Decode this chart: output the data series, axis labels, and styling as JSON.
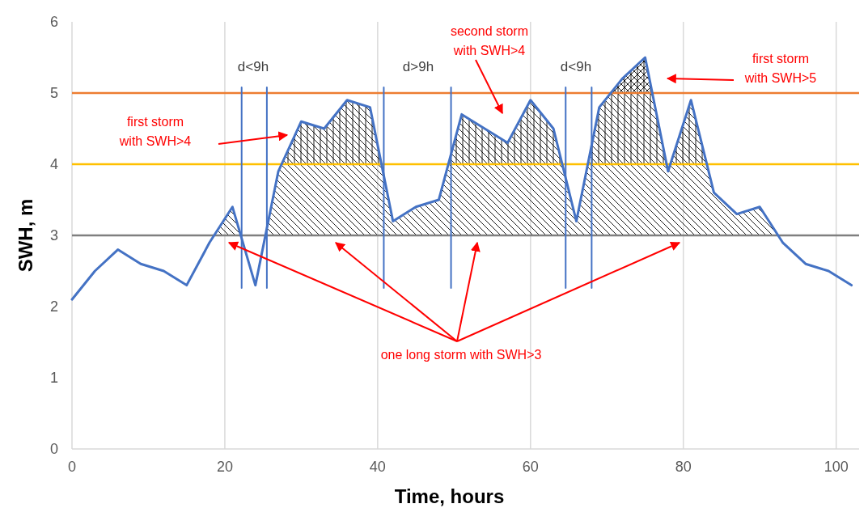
{
  "chart_data": {
    "type": "line",
    "xlabel": "Time, hours",
    "ylabel": "SWH, m",
    "xlim": [
      0,
      103
    ],
    "xticks": [
      0,
      20,
      40,
      60,
      80,
      100
    ],
    "ylim": [
      0,
      6
    ],
    "yticks": [
      0,
      1,
      2,
      3,
      4,
      5,
      6
    ],
    "grid": "x",
    "marker": "none",
    "line_style": "solid",
    "x": [
      0,
      3,
      6,
      9,
      12,
      15,
      18,
      21,
      24,
      27,
      30,
      33,
      36,
      39,
      42,
      45,
      48,
      51,
      54,
      57,
      60,
      63,
      66,
      69,
      72,
      75,
      78,
      81,
      84,
      87,
      90,
      93,
      96,
      99,
      102
    ],
    "series": [
      {
        "type": "area",
        "color": "#000000",
        "x": [
          18.6,
          21,
          22.1,
          23,
          25.3,
          27,
          30,
          33,
          36,
          39,
          42,
          45,
          48,
          51,
          54,
          57,
          60,
          63,
          66,
          69,
          72,
          75,
          78,
          81,
          84,
          87,
          90,
          92.4
        ],
        "values": [
          3,
          3.4,
          3,
          null,
          3,
          3.9,
          4.6,
          4.5,
          4.9,
          4.8,
          3.2,
          3.4,
          3.5,
          4.7,
          4.5,
          4.3,
          4.9,
          4.5,
          3.2,
          4.8,
          5.2,
          5.5,
          3.9,
          4.9,
          3.6,
          3.3,
          3.4,
          3
        ]
      },
      {
        "type": "area",
        "color": "#000000",
        "x": [
          27.4,
          30,
          33,
          36,
          39,
          40.5,
          45,
          49.3,
          51,
          54,
          57,
          60,
          63,
          64.2,
          66,
          67.5,
          69,
          72,
          75,
          77.8,
          78,
          78.3,
          81,
          83.1
        ],
        "values": [
          4,
          4.6,
          4.5,
          4.9,
          4.8,
          4,
          null,
          4,
          4.7,
          4.5,
          4.3,
          4.9,
          4.5,
          4,
          null,
          4,
          4.8,
          5.2,
          5.5,
          4,
          null,
          4,
          4.9,
          4
        ]
      },
      {
        "type": "area",
        "color": "#000000",
        "x": [
          70.5,
          72,
          75,
          75.9
        ],
        "values": [
          5,
          5.2,
          5.5,
          5
        ]
      },
      {
        "color": "#4472c4",
        "values": [
          2.1,
          2.5,
          2.8,
          2.6,
          2.5,
          2.3,
          2.9,
          3.4,
          2.3,
          3.9,
          4.6,
          4.5,
          4.9,
          4.8,
          3.2,
          3.4,
          3.5,
          4.7,
          4.5,
          4.3,
          4.9,
          4.5,
          3.2,
          4.8,
          5.2,
          5.5,
          3.9,
          4.9,
          3.6,
          3.3,
          3.4,
          2.9,
          2.6,
          2.5,
          2.3
        ]
      },
      {
        "color": "#4472c4",
        "x": [
          22.2,
          22.2
        ],
        "values": [
          2.26,
          5.08
        ]
      },
      {
        "color": "#4472c4",
        "x": [
          25.5,
          25.5
        ],
        "values": [
          2.26,
          5.08
        ]
      },
      {
        "color": "#4472c4",
        "x": [
          40.8,
          40.8
        ],
        "values": [
          2.26,
          5.08
        ]
      },
      {
        "color": "#4472c4",
        "x": [
          49.6,
          49.6
        ],
        "values": [
          2.26,
          5.08
        ]
      },
      {
        "color": "#4472c4",
        "x": [
          64.6,
          64.6
        ],
        "values": [
          2.26,
          5.08
        ]
      },
      {
        "color": "#4472c4",
        "x": [
          68,
          68
        ],
        "values": [
          2.26,
          5.08
        ]
      }
    ],
    "ref_lines": [
      {
        "axis": "y",
        "value": 3,
        "color": "#7f7f7f"
      },
      {
        "axis": "y",
        "value": 4,
        "color": "#ffc000"
      },
      {
        "axis": "y",
        "value": 5,
        "color": "#ed7d31"
      }
    ],
    "annotations": [
      "d<9h",
      "d>9h",
      "d<9h",
      "first storm\nwith SWH>4",
      "second storm\nwith SWH>4",
      "first storm\nwith SWH>5",
      "one long storm with SWH>3"
    ]
  }
}
